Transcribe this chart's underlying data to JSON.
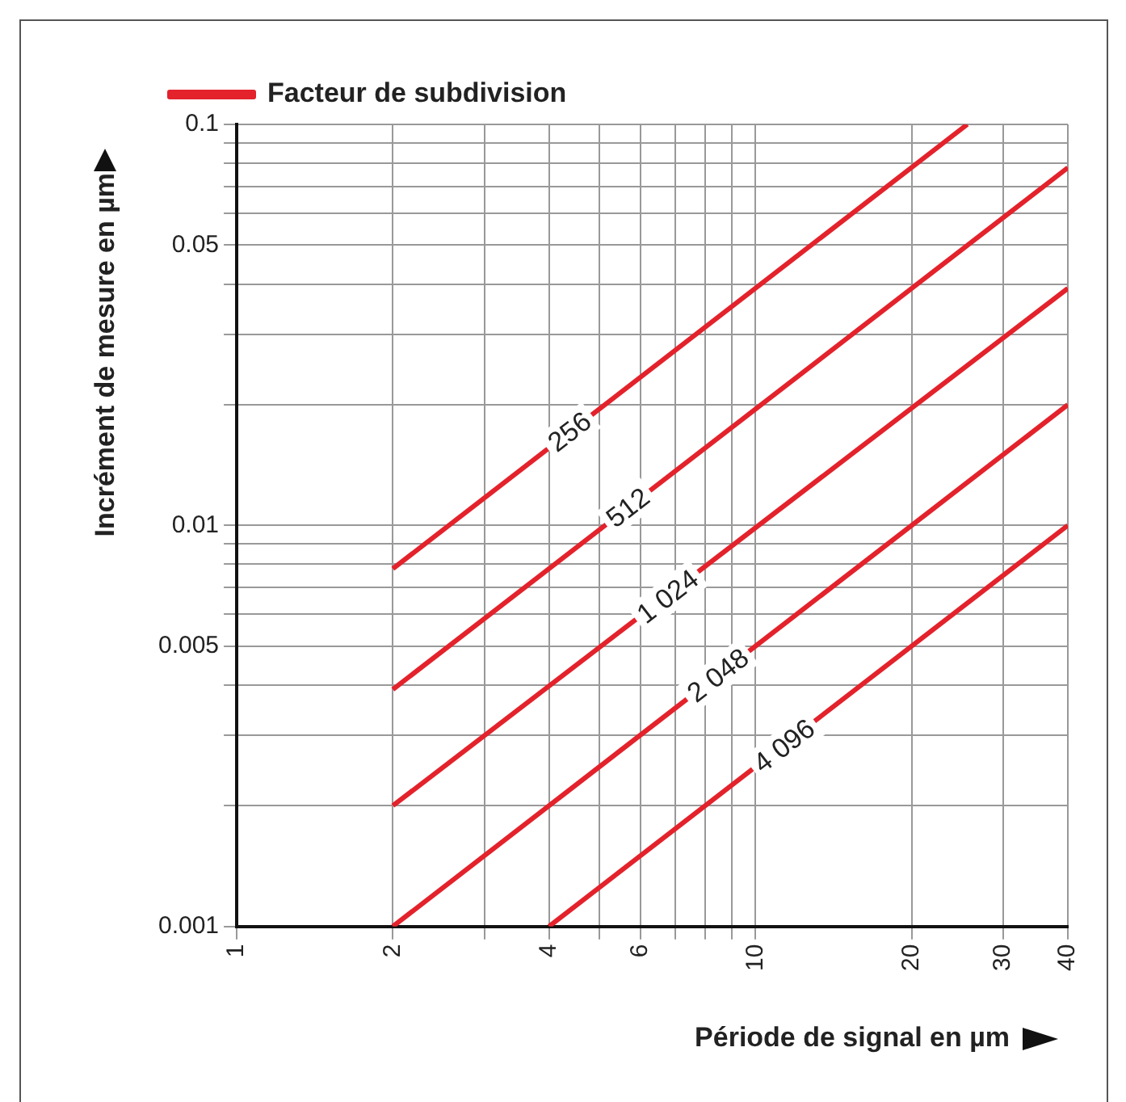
{
  "chart_data": {
    "type": "line",
    "xlabel": "Période de signal en µm",
    "ylabel": "Incrément de mesure en µm",
    "legend": "top left",
    "log": "xy",
    "grid": true,
    "marker": "none",
    "line_style": "solid",
    "xlim": [
      1,
      40
    ],
    "ylim": [
      0.001,
      0.1
    ],
    "xticks": [
      1,
      2,
      {
        "value": 3,
        "label": null
      },
      4,
      {
        "value": 5,
        "label": null
      },
      6,
      {
        "value": 7,
        "label": null
      },
      {
        "value": 8,
        "label": null
      },
      {
        "value": 9,
        "label": null
      },
      10,
      20,
      30,
      40
    ],
    "yticks": [
      0.001,
      {
        "value": 0.002,
        "label": null
      },
      {
        "value": 0.003,
        "label": null
      },
      {
        "value": 0.004,
        "label": null
      },
      0.005,
      {
        "value": 0.006,
        "label": null
      },
      {
        "value": 0.007,
        "label": null
      },
      {
        "value": 0.008,
        "label": null
      },
      {
        "value": 0.009,
        "label": null
      },
      0.01,
      {
        "value": 0.02,
        "label": null
      },
      {
        "value": 0.03,
        "label": null
      },
      {
        "value": 0.04,
        "label": null
      },
      0.05,
      {
        "value": 0.06,
        "label": null
      },
      {
        "value": 0.07,
        "label": null
      },
      {
        "value": 0.08,
        "label": null
      },
      {
        "value": 0.09,
        "label": null
      },
      0.1
    ],
    "series": [
      {
        "name": "Facteur de subdivision",
        "color": "#e3222b",
        "x": [
          2,
          25.6
        ],
        "values": [
          0.0078,
          0.1
        ]
      },
      {
        "color": "#e3222b",
        "x": [
          2,
          40
        ],
        "values": [
          0.0039,
          0.078
        ]
      },
      {
        "color": "#e3222b",
        "x": [
          2,
          40
        ],
        "values": [
          0.002,
          0.039
        ]
      },
      {
        "color": "#e3222b",
        "x": [
          2,
          40
        ],
        "values": [
          0.001,
          0.02
        ]
      },
      {
        "color": "#e3222b",
        "x": [
          4,
          40
        ],
        "values": [
          0.001,
          0.01
        ]
      }
    ],
    "annotations": [
      {
        "text": "256",
        "x": 4.4,
        "y": 0.017
      },
      {
        "text": "512",
        "x": 5.7,
        "y": 0.011
      },
      {
        "text": "1 024",
        "x": 6.8,
        "y": 0.0066
      },
      {
        "text": "2 048",
        "x": 8.5,
        "y": 0.0042
      },
      {
        "text": "4 096",
        "x": 11.4,
        "y": 0.0028
      }
    ]
  }
}
